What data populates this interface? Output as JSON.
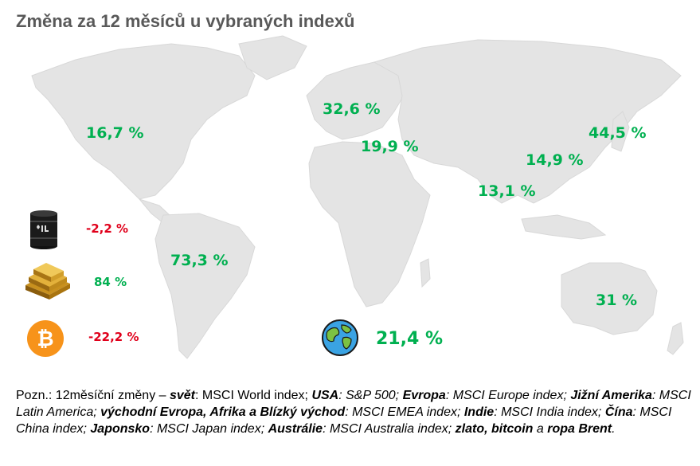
{
  "title": "Změna za 12 měsíců u vybraných indexů",
  "regions": {
    "usa": "16,7 %",
    "europe": "32,6 %",
    "emea": "19,9 %",
    "japan": "44,5 %",
    "china": "14,9 %",
    "india": "13,1 %",
    "latam": "73,3 %",
    "australia": "31 %",
    "world": "21,4 %"
  },
  "commodities": {
    "oil": "-2,2 %",
    "gold": "84 %",
    "bitcoin": "-22,2 %"
  },
  "icons": {
    "oil": "oil-barrel-icon",
    "gold": "gold-bars-icon",
    "bitcoin": "bitcoin-icon",
    "world": "globe-icon"
  },
  "colors": {
    "positive": "#00b050",
    "negative": "#e0001b",
    "map": "#e6e6e6",
    "title": "#595959"
  },
  "note": {
    "p1": "Pozn.: 12měsíční změny – ",
    "b1": "svět",
    "t1": ": MSCI World index; ",
    "b2": "USA",
    "t2": ": S&P 500; ",
    "b3": "Evropa",
    "t3": ": MSCI Europe index; ",
    "b4": "Jižní Amerika",
    "t4": ": MSCI Latin America; ",
    "b5": "východní Evropa, Afrika a Blízký východ",
    "t5": ": MSCI EMEA index; ",
    "b6": "Indie",
    "t6": ": MSCI India index; ",
    "b7": "Čína",
    "t7": ": MSCI China index; ",
    "b8": "Japonsko",
    "t8": ": MSCI Japan index; ",
    "b9": "Austrálie",
    "t9": ": MSCI Australia index; ",
    "b10": "zlato, bitcoin",
    "t10": " a ",
    "b11": "ropa Brent",
    "t11": "."
  }
}
